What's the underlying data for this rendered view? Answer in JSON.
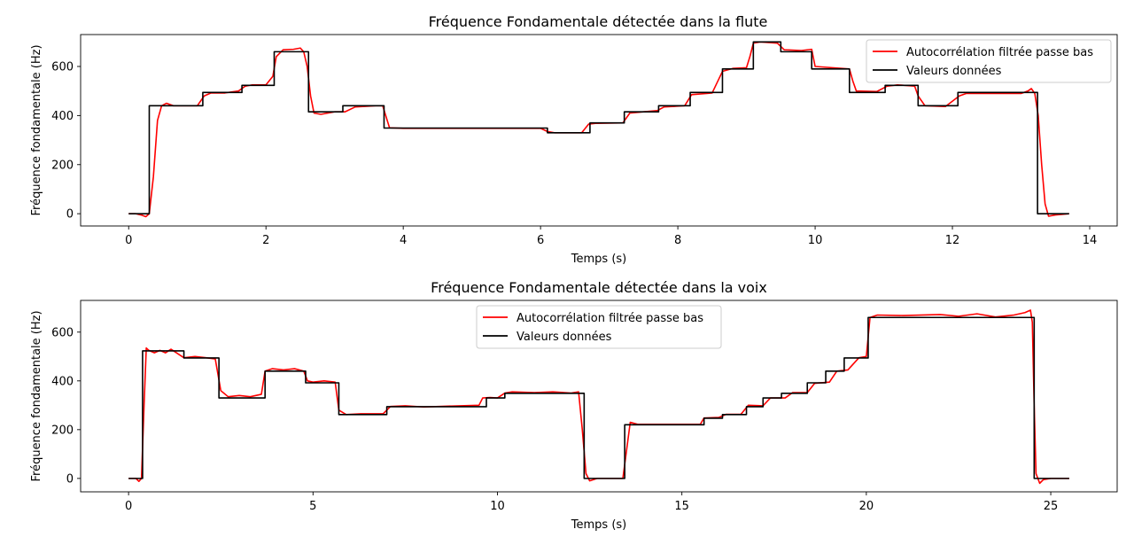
{
  "chart_data": [
    {
      "type": "line",
      "title": "Fréquence Fondamentale détectée dans la flute",
      "xlabel": "Temps (s)",
      "ylabel": "Fréquence fondamentale (Hz)",
      "xlim": [
        -0.7,
        14.4
      ],
      "ylim": [
        -50,
        730
      ],
      "xticks": [
        0,
        2,
        4,
        6,
        8,
        10,
        12,
        14
      ],
      "yticks": [
        0,
        200,
        400,
        600
      ],
      "grid": false,
      "legend_position": "top-right",
      "series": [
        {
          "name": "Autocorrélation filtrée passe bas",
          "color": "#ff0000",
          "x": [
            0.0,
            0.1,
            0.18,
            0.25,
            0.3,
            0.36,
            0.42,
            0.48,
            0.55,
            0.65,
            0.8,
            1.0,
            1.1,
            1.2,
            1.4,
            1.6,
            1.7,
            1.8,
            2.0,
            2.1,
            2.15,
            2.25,
            2.4,
            2.5,
            2.55,
            2.6,
            2.65,
            2.7,
            2.8,
            3.0,
            3.15,
            3.3,
            3.6,
            3.7,
            3.8,
            4.0,
            5.0,
            6.0,
            6.1,
            6.2,
            6.6,
            6.7,
            6.8,
            7.2,
            7.3,
            7.5,
            7.7,
            7.8,
            8.1,
            8.2,
            8.5,
            8.65,
            8.8,
            9.0,
            9.05,
            9.1,
            9.2,
            9.45,
            9.55,
            9.8,
            9.95,
            10.0,
            10.5,
            10.55,
            10.6,
            10.9,
            11.05,
            11.2,
            11.45,
            11.5,
            11.6,
            11.9,
            12.1,
            12.2,
            13.0,
            13.1,
            13.15,
            13.2,
            13.25,
            13.3,
            13.35,
            13.4,
            13.5,
            13.7
          ],
          "y": [
            0,
            0,
            -5,
            -12,
            0,
            150,
            380,
            440,
            450,
            440,
            440,
            440,
            480,
            492,
            492,
            500,
            520,
            525,
            525,
            560,
            640,
            668,
            670,
            675,
            660,
            600,
            480,
            410,
            405,
            415,
            415,
            435,
            440,
            440,
            350,
            348,
            348,
            348,
            335,
            330,
            330,
            365,
            368,
            370,
            410,
            415,
            420,
            435,
            440,
            485,
            492,
            580,
            592,
            595,
            640,
            695,
            700,
            695,
            668,
            665,
            670,
            600,
            590,
            540,
            500,
            498,
            520,
            525,
            520,
            480,
            440,
            437,
            480,
            490,
            490,
            500,
            510,
            490,
            400,
            200,
            40,
            -10,
            -5,
            0
          ]
        },
        {
          "name": "Valeurs données",
          "color": "#000000",
          "x": [
            0.0,
            0.3,
            0.3,
            1.08,
            1.08,
            1.65,
            1.65,
            2.12,
            2.12,
            2.62,
            2.62,
            3.12,
            3.12,
            3.72,
            3.72,
            6.1,
            6.1,
            6.72,
            6.72,
            7.22,
            7.22,
            7.72,
            7.72,
            8.18,
            8.18,
            8.65,
            8.65,
            9.1,
            9.1,
            9.5,
            9.5,
            9.95,
            9.95,
            10.5,
            10.5,
            11.02,
            11.02,
            11.5,
            11.5,
            12.08,
            12.08,
            13.24,
            13.24,
            13.7
          ],
          "y": [
            0,
            0,
            440,
            440,
            494,
            494,
            523,
            523,
            660,
            660,
            415,
            415,
            440,
            440,
            349,
            349,
            330,
            330,
            370,
            370,
            415,
            415,
            440,
            440,
            494,
            494,
            590,
            590,
            700,
            700,
            660,
            660,
            590,
            590,
            494,
            494,
            523,
            523,
            440,
            440,
            494,
            494,
            0,
            0
          ]
        }
      ]
    },
    {
      "type": "line",
      "title": "Fréquence Fondamentale détectée dans la voix",
      "xlabel": "Temps (s)",
      "ylabel": "Fréquence fondamentale (Hz)",
      "xlim": [
        -1.3,
        26.8
      ],
      "ylim": [
        -55,
        730
      ],
      "xticks": [
        0,
        5,
        10,
        15,
        20,
        25
      ],
      "yticks": [
        0,
        200,
        400,
        600
      ],
      "grid": false,
      "legend_position": "top-center",
      "series": [
        {
          "name": "Autocorrélation filtrée passe bas",
          "color": "#ff0000",
          "x": [
            0.0,
            0.2,
            0.28,
            0.35,
            0.42,
            0.48,
            0.55,
            0.7,
            0.85,
            1.0,
            1.15,
            1.3,
            1.5,
            1.8,
            2.1,
            2.35,
            2.5,
            2.7,
            3.0,
            3.3,
            3.6,
            3.7,
            3.9,
            4.2,
            4.5,
            4.75,
            4.85,
            5.0,
            5.3,
            5.6,
            5.7,
            5.9,
            6.3,
            6.9,
            7.1,
            7.5,
            8.0,
            9.0,
            9.5,
            9.6,
            9.8,
            10.0,
            10.2,
            10.4,
            11.0,
            11.5,
            12.0,
            12.2,
            12.3,
            12.4,
            12.5,
            12.7,
            13.0,
            13.4,
            13.6,
            13.8,
            14.0,
            15.0,
            15.5,
            15.6,
            16.0,
            16.2,
            16.6,
            16.8,
            17.2,
            17.4,
            17.8,
            18.0,
            18.4,
            18.6,
            19.0,
            19.2,
            19.5,
            19.8,
            20.0,
            20.1,
            20.3,
            21.0,
            22.0,
            22.5,
            23.0,
            23.5,
            24.0,
            24.3,
            24.45,
            24.5,
            24.55,
            24.6,
            24.7,
            24.8,
            25.0,
            25.5
          ],
          "y": [
            0,
            0,
            -12,
            0,
            300,
            535,
            525,
            515,
            525,
            515,
            530,
            515,
            495,
            500,
            495,
            490,
            360,
            335,
            340,
            335,
            345,
            440,
            450,
            445,
            450,
            440,
            400,
            395,
            400,
            395,
            280,
            262,
            265,
            265,
            295,
            298,
            293,
            298,
            300,
            330,
            332,
            330,
            350,
            355,
            352,
            355,
            350,
            355,
            200,
            20,
            -10,
            0,
            0,
            0,
            230,
            222,
            222,
            222,
            222,
            248,
            250,
            263,
            263,
            300,
            298,
            330,
            330,
            352,
            352,
            390,
            395,
            440,
            445,
            495,
            500,
            660,
            670,
            668,
            672,
            665,
            675,
            662,
            670,
            680,
            690,
            640,
            300,
            20,
            -20,
            -5,
            0,
            0
          ]
        },
        {
          "name": "Valeurs données",
          "color": "#000000",
          "x": [
            0.0,
            0.38,
            0.38,
            1.5,
            1.5,
            2.45,
            2.45,
            3.7,
            3.7,
            4.8,
            4.8,
            5.7,
            5.7,
            7.0,
            7.0,
            9.7,
            9.7,
            10.2,
            10.2,
            12.35,
            12.35,
            13.45,
            13.45,
            15.6,
            15.6,
            16.1,
            16.1,
            16.75,
            16.75,
            17.2,
            17.2,
            17.7,
            17.7,
            18.4,
            18.4,
            18.9,
            18.9,
            19.4,
            19.4,
            20.05,
            20.05,
            24.55,
            24.55,
            25.5
          ],
          "y": [
            0,
            0,
            523,
            523,
            494,
            494,
            330,
            330,
            440,
            440,
            392,
            392,
            262,
            262,
            294,
            294,
            330,
            330,
            349,
            349,
            0,
            0,
            220,
            220,
            247,
            247,
            262,
            262,
            294,
            294,
            330,
            330,
            349,
            349,
            392,
            392,
            440,
            440,
            494,
            494,
            660,
            660,
            0,
            0
          ]
        }
      ]
    }
  ]
}
